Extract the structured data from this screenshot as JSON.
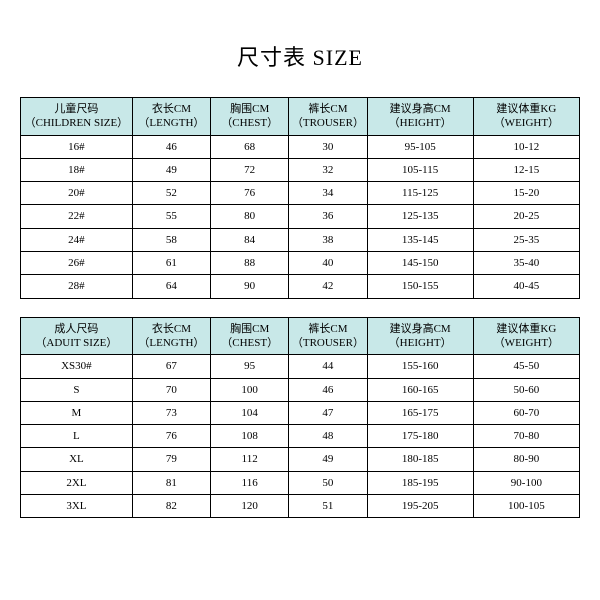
{
  "title": "尺寸表 SIZE",
  "columns": [
    {
      "cn": "儿童尺码",
      "en": "（CHILDREN SIZE）"
    },
    {
      "cn": "衣长CM",
      "en": "（LENGTH）"
    },
    {
      "cn": "胸围CM",
      "en": "（CHEST）"
    },
    {
      "cn": "裤长CM",
      "en": "（TROUSER）"
    },
    {
      "cn": "建议身高CM",
      "en": "（HEIGHT）"
    },
    {
      "cn": "建议体重KG",
      "en": "（WEIGHT）"
    }
  ],
  "children_rows": [
    [
      "16#",
      "46",
      "68",
      "30",
      "95-105",
      "10-12"
    ],
    [
      "18#",
      "49",
      "72",
      "32",
      "105-115",
      "12-15"
    ],
    [
      "20#",
      "52",
      "76",
      "34",
      "115-125",
      "15-20"
    ],
    [
      "22#",
      "55",
      "80",
      "36",
      "125-135",
      "20-25"
    ],
    [
      "24#",
      "58",
      "84",
      "38",
      "135-145",
      "25-35"
    ],
    [
      "26#",
      "61",
      "88",
      "40",
      "145-150",
      "35-40"
    ],
    [
      "28#",
      "64",
      "90",
      "42",
      "150-155",
      "40-45"
    ]
  ],
  "adult_columns": [
    {
      "cn": "成人尺码",
      "en": "（ADUIT SIZE）"
    },
    {
      "cn": "衣长CM",
      "en": "（LENGTH）"
    },
    {
      "cn": "胸围CM",
      "en": "（CHEST）"
    },
    {
      "cn": "裤长CM",
      "en": "（TROUSER）"
    },
    {
      "cn": "建议身高CM",
      "en": "（HEIGHT）"
    },
    {
      "cn": "建议体重KG",
      "en": "（WEIGHT）"
    }
  ],
  "adult_rows": [
    [
      "XS30#",
      "67",
      "95",
      "44",
      "155-160",
      "45-50"
    ],
    [
      "S",
      "70",
      "100",
      "46",
      "160-165",
      "50-60"
    ],
    [
      "M",
      "73",
      "104",
      "47",
      "165-175",
      "60-70"
    ],
    [
      "L",
      "76",
      "108",
      "48",
      "175-180",
      "70-80"
    ],
    [
      "XL",
      "79",
      "112",
      "49",
      "180-185",
      "80-90"
    ],
    [
      "2XL",
      "81",
      "116",
      "50",
      "185-195",
      "90-100"
    ],
    [
      "3XL",
      "82",
      "120",
      "51",
      "195-205",
      "100-105"
    ]
  ],
  "style": {
    "header_bg": "#c8e8e8",
    "border_color": "#000000",
    "background": "#ffffff",
    "title_fontsize": 22,
    "cell_fontsize": 11,
    "col_widths_pct": [
      20,
      14,
      14,
      14,
      19,
      19
    ]
  }
}
